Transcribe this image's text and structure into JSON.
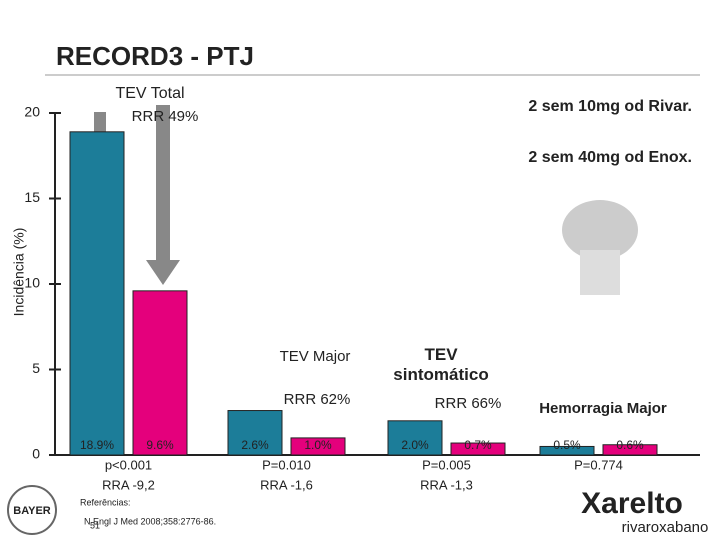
{
  "chart_data": {
    "type": "bar",
    "title": "RECORD3 - PTJ",
    "y_label": "Incidência (%)",
    "categories": [
      "TEV Total",
      "TEV Major",
      "TEV sintomático",
      "Hemorragia Major"
    ],
    "series": [
      {
        "name": "2 sem 40mg od Enox.",
        "color": "#1c7d99",
        "values": [
          18.9,
          2.6,
          2.0,
          0.5
        ],
        "value_labels": [
          "18.9%",
          "2.6%",
          "2.0%",
          "0.5%"
        ]
      },
      {
        "name": "2 sem 10mg od Rivar.",
        "color": "#e4007c",
        "values": [
          9.6,
          1.0,
          0.7,
          0.6
        ],
        "value_labels": [
          "9.6%",
          "1.0%",
          "0.7%",
          "0.6%"
        ]
      }
    ],
    "rrr": [
      "RRR 49%",
      "RRR 62%",
      "RRR 66%",
      null
    ],
    "p_values": [
      "p<0.001",
      "P=0.010",
      "P=0.005",
      "P=0.774"
    ],
    "rra": [
      "RRA -9,2",
      "RRA -1,6",
      "RRA -1,3",
      null
    ],
    "ylim": [
      0,
      20
    ],
    "yticks": [
      0,
      5,
      10,
      15,
      20
    ]
  },
  "footer": {
    "references_label": "Referências:",
    "reference": "N Engl J Med 2008;358:2776-86.",
    "page": "51",
    "bayer": "BAYER",
    "brand": "Xarelto",
    "brand_sub": "rivaroxabano"
  }
}
